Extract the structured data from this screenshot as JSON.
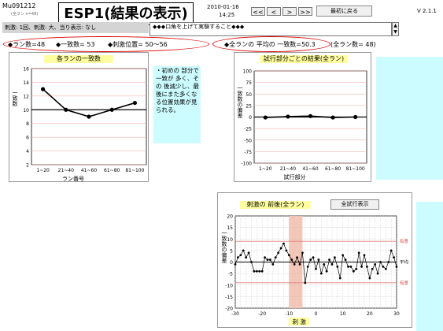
{
  "header": {
    "code": "Mu091212",
    "subcode": "(全ラン n=48)",
    "title": "ESP1(結果の表示)",
    "date": "2010-01-16",
    "time": "14:25",
    "version": "V 2.1.1",
    "nav": [
      "<<",
      "<",
      ">",
      ">>"
    ],
    "reset_label": "最初に戻る"
  },
  "info": {
    "settings_text": "刺激: 1回、刺激: 大、当り表示: なし",
    "message": "◆◆◆口角を上げて実験すること◆◆◆"
  },
  "stats": {
    "run_count": "◆ラン数=48",
    "match_count": "◆一致数= 53",
    "stim_position": "◆刺激位置= 50〜56",
    "avg_match": "◆全ランの 平均の 一致数=50.3",
    "total_runs": "(全ラン数= 48)"
  },
  "note": "・初めの 部分で一致が 多く、その 後減少し、最後にまた多くなる位置効果が見られる。",
  "overlay_button": "全試行表示",
  "charts": [
    {
      "type": "line",
      "title": "各ランの一致数",
      "xlabel": "ラン番号",
      "ylabel": "一致数",
      "categories": [
        "1~20",
        "21~40",
        "41~60",
        "61~80",
        "81~100"
      ],
      "y_ticks": [
        "16",
        "14",
        "12",
        "10",
        "8",
        "6",
        "4",
        "2"
      ],
      "ylim": [
        2,
        16
      ],
      "ref_line": 10,
      "values": [
        13,
        10,
        9,
        10,
        11
      ],
      "color": "#000000"
    },
    {
      "type": "line",
      "title": "試行部分ごとの結果(全ラン)",
      "xlabel": "試行部分",
      "ylabel": "一致数の偏差",
      "categories": [
        "1~20",
        "21~40",
        "41~60",
        "61~80",
        "81~100"
      ],
      "y_ticks": [
        "100",
        "75",
        "50",
        "25",
        "0",
        "-25",
        "-50",
        "-75",
        "-100"
      ],
      "ylim": [
        -100,
        100
      ],
      "ref_line": 0,
      "values": [
        -1,
        1,
        2,
        -1,
        0
      ],
      "color": "#000000"
    },
    {
      "type": "line",
      "title": "刺激の 前後(全ラン)",
      "xlabel": "刺 激",
      "ylabel": "一致数の偏差",
      "x_ticks": [
        "-30",
        "-20",
        "-10",
        "0",
        "10",
        "20",
        "30"
      ],
      "y_ticks": [
        "20",
        "15",
        "10",
        "5",
        "0",
        "-5",
        "-10",
        "-15",
        "-20"
      ],
      "ylim": [
        -20,
        20
      ],
      "xlim": [
        -30,
        30
      ],
      "ref_line": 0,
      "ref_label": "平均",
      "sig_label": "有意",
      "sig_levels": [
        9,
        -9
      ],
      "highlight_range": [
        -10,
        -5
      ],
      "x": [
        -30,
        -29,
        -28,
        -27,
        -26,
        -25,
        -24,
        -23,
        -22,
        -21,
        -20,
        -19,
        -18,
        -17,
        -16,
        -15,
        -14,
        -13,
        -12,
        -11,
        -10,
        -9,
        -8,
        -7,
        -6,
        -5,
        -4,
        -3,
        -2,
        -1,
        0,
        1,
        2,
        3,
        4,
        5,
        6,
        7,
        8,
        9,
        10,
        11,
        12,
        13,
        14,
        15,
        16,
        17,
        18,
        19,
        20,
        21,
        22,
        23,
        24,
        25,
        26,
        27,
        28,
        29,
        30
      ],
      "values": [
        -1,
        2,
        3,
        5,
        2,
        4,
        0,
        -4,
        -4,
        -4,
        -4,
        2,
        1,
        1,
        -1,
        2,
        4,
        6,
        8,
        5,
        3,
        1,
        -1,
        2,
        -1,
        4,
        -9,
        -2,
        1,
        2,
        -3,
        1,
        -5,
        -1,
        -4,
        1,
        -1,
        2,
        -2,
        -7,
        3,
        1,
        -2,
        -2,
        -4,
        -3,
        4,
        -2,
        3,
        -2,
        -7,
        -3,
        -1,
        -5,
        0,
        -2,
        -3,
        0,
        5,
        2,
        -2
      ],
      "color": "#000000"
    }
  ],
  "colors": {
    "sig_line": "#e08080",
    "highlight": "#f4c7b8",
    "cyan_panel": "#ccfcff",
    "ellipse": "#e00000",
    "panel_title_bg": "#ffffa0"
  }
}
